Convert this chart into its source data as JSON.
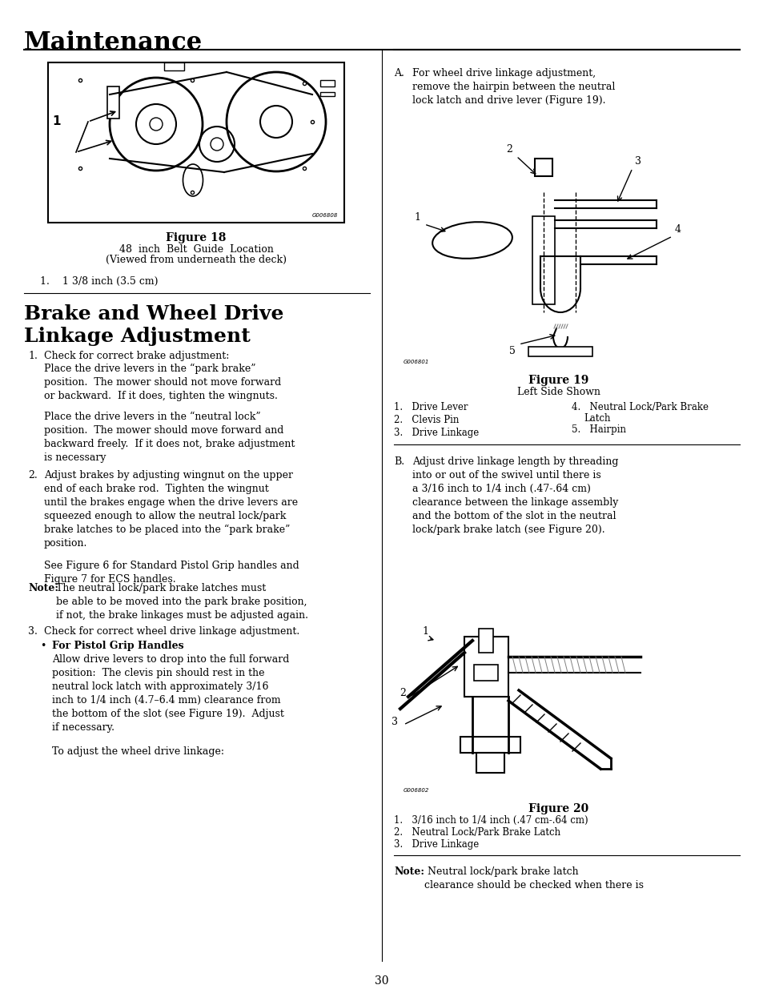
{
  "bg_color": "#ffffff",
  "page_width": 9.54,
  "page_height": 12.35,
  "header_title": "Maintenance",
  "section_title": "Brake and Wheel Drive\nLinkage Adjustment",
  "page_number": "30",
  "fig18_caption_bold": "Figure 18",
  "fig18_caption1": "48  inch  Belt  Guide  Location",
  "fig18_caption2": "(Viewed from underneath the deck)",
  "fig18_item1": "1.    1 3/8 inch (3.5 cm)",
  "fig19_caption_bold": "Figure 19",
  "fig19_caption1": "Left Side Shown",
  "fig19_labels_left": [
    "1.   Drive Lever",
    "2.   Clevis Pin",
    "3.   Drive Linkage"
  ],
  "fig19_labels_right": [
    "4.   Neutral Lock/Park Brake\n      Latch",
    "5.   Hairpin"
  ],
  "fig20_caption_bold": "Figure 20",
  "fig20_items": [
    "1.   3/16 inch to 1/4 inch (.47 cm-.64 cm)",
    "2.   Neutral Lock/Park Brake Latch",
    "3.   Drive Linkage"
  ],
  "text_body_left": [
    {
      "type": "numbered",
      "num": "1.",
      "text": "Check for correct brake adjustment:"
    },
    {
      "type": "para",
      "text": "Place the drive levers in the “park brake” position.  The mower should not move forward or backward.  If it does, tighten the wingnuts."
    },
    {
      "type": "para",
      "text": "Place the drive levers in the “neutral lock” position.  The mower should move forward and backward freely.  If it does not, brake adjustment is necessary"
    },
    {
      "type": "numbered",
      "num": "2.",
      "text": "Adjust brakes by adjusting wingnut on the upper end of each brake rod.  Tighten the wingnut until the brakes engage when the drive levers are squeezed enough to allow the neutral lock/park brake latches to be placed into the “park brake” position."
    },
    {
      "type": "para",
      "text": "See Figure 6 for Standard Pistol Grip handles and Figure 7 for ECS handles."
    },
    {
      "type": "note",
      "text": "Note:  The neutral lock/park brake latches must be able to be moved into the park brake position, if not, the brake linkages must be adjusted again."
    },
    {
      "type": "numbered",
      "num": "3.",
      "text": "Check for correct wheel drive linkage adjustment."
    },
    {
      "type": "bullet_bold",
      "text": "For Pistol Grip Handles"
    },
    {
      "type": "para",
      "text": "Allow drive levers to drop into the full forward position:  The clevis pin should rest in the neutral lock latch with approximately 3/16 inch to 1/4 inch (4.7–6.4 mm) clearance from the bottom of the slot (see Figure 19).  Adjust if necessary."
    },
    {
      "type": "para",
      "text": "To adjust the wheel drive linkage:"
    }
  ],
  "text_body_right": [
    {
      "type": "alpha",
      "letter": "A.",
      "text": "For wheel drive linkage adjustment, remove the hairpin between the neutral lock latch and drive lever (Figure 19)."
    },
    {
      "type": "alpha",
      "letter": "B.",
      "text": "Adjust drive linkage length by threading into or out of the swivel until there is a 3/16 inch to 1/4 inch (.47-.64 cm) clearance between the linkage assembly and the bottom of the slot in the neutral lock/park brake latch (see Figure 20)."
    },
    {
      "type": "note_bottom",
      "text": "Note:  Neutral lock/park brake latch clearance should be checked when there is"
    }
  ]
}
